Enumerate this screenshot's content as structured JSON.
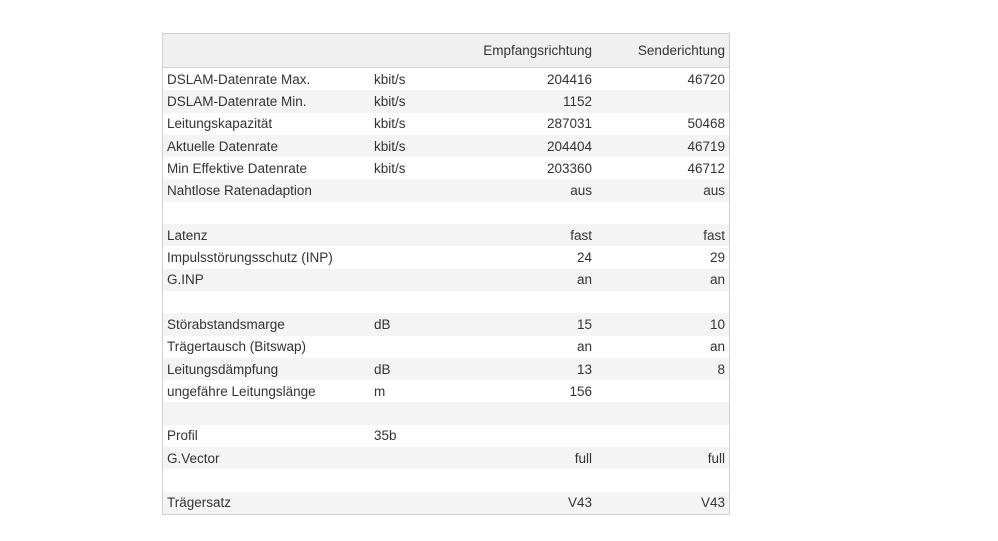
{
  "table": {
    "columns": [
      null,
      null,
      "Empfangsrichtung",
      "Senderichtung"
    ],
    "rows": [
      [
        "DSLAM-Datenrate Max.",
        "kbit/s",
        204416,
        46720
      ],
      [
        "DSLAM-Datenrate Min.",
        "kbit/s",
        1152,
        null
      ],
      [
        "Leitungskapazität",
        "kbit/s",
        287031,
        50468
      ],
      [
        "Aktuelle Datenrate",
        "kbit/s",
        204404,
        46719
      ],
      [
        "Min Effektive Datenrate",
        "kbit/s",
        203360,
        46712
      ],
      [
        "Nahtlose Ratenadaption",
        null,
        "aus",
        "aus"
      ],
      [
        null,
        null,
        null,
        null
      ],
      [
        "Latenz",
        null,
        "fast",
        "fast"
      ],
      [
        "Impulsstörungsschutz (INP)",
        null,
        24,
        29
      ],
      [
        "G.INP",
        null,
        "an",
        "an"
      ],
      [
        null,
        null,
        null,
        null
      ],
      [
        "Störabstandsmarge",
        "dB",
        15,
        10
      ],
      [
        "Trägertausch (Bitswap)",
        null,
        "an",
        "an"
      ],
      [
        "Leitungsdämpfung",
        "dB",
        13,
        8
      ],
      [
        "ungefähre Leitungslänge",
        "m",
        156,
        null
      ],
      [
        null,
        null,
        null,
        null
      ],
      [
        "Profil",
        "35b",
        null,
        null
      ],
      [
        "G.Vector",
        null,
        "full",
        "full"
      ],
      [
        null,
        null,
        null,
        null
      ],
      [
        "Trägersatz",
        null,
        "V43",
        "V43"
      ]
    ]
  }
}
